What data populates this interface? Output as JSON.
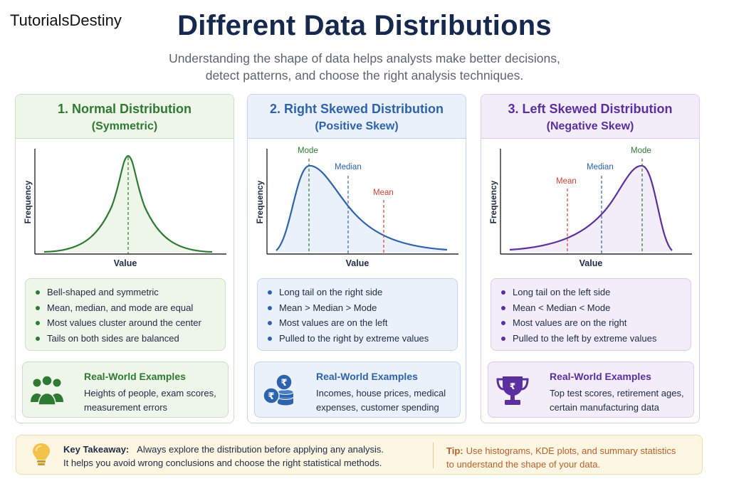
{
  "brand": "TutorialsDestiny",
  "title": "Different Data Distributions",
  "subtitle": [
    "Understanding the shape of data helps analysts make better decisions,",
    "detect patterns, and choose the right analysis techniques."
  ],
  "axis": {
    "x": "Value",
    "y": "Frequency"
  },
  "cards": [
    {
      "heading": "1. Normal Distribution",
      "subheading": "(Symmetric)",
      "color": "#2f7a33",
      "bg": "#eef6ea",
      "border": "#c9e1c3",
      "markers": [],
      "bullets": [
        "Bell-shaped and symmetric",
        "Mean, median, and mode are equal",
        "Most values cluster around the center",
        "Tails on both sides are balanced"
      ],
      "examples_title": "Real-World Examples",
      "examples_text": "Heights of people, exam scores, measurement errors",
      "icon": "people-group-icon"
    },
    {
      "heading": "2. Right Skewed Distribution",
      "subheading": "(Positive Skew)",
      "color": "#2d63ad",
      "bg": "#eaf1fa",
      "border": "#c3d5ee",
      "markers": [
        {
          "label": "Mode",
          "color": "#2f7a33"
        },
        {
          "label": "Median",
          "color": "#2d63ad"
        },
        {
          "label": "Mean",
          "color": "#d0413a"
        }
      ],
      "bullets": [
        "Long tail on the right side",
        "Mean > Median > Mode",
        "Most values are on the left",
        "Pulled to the right by extreme values"
      ],
      "examples_title": "Real-World Examples",
      "examples_text": "Incomes, house prices, medical expenses, customer spending",
      "icon": "rupee-coins-icon"
    },
    {
      "heading": "3. Left Skewed Distribution",
      "subheading": "(Negative Skew)",
      "color": "#5b2fa0",
      "bg": "#f2edf9",
      "border": "#d9ccec",
      "markers": [
        {
          "label": "Mean",
          "color": "#d0413a"
        },
        {
          "label": "Median",
          "color": "#2d63ad"
        },
        {
          "label": "Mode",
          "color": "#2f7a33"
        }
      ],
      "bullets": [
        "Long tail on the left side",
        "Mean < Median < Mode",
        "Most values are on the right",
        "Pulled to the left by extreme values"
      ],
      "examples_title": "Real-World Examples",
      "examples_text": "Top test scores, retirement ages, certain manufacturing data",
      "icon": "trophy-icon"
    }
  ],
  "takeaway": {
    "label": "Key Takeaway:",
    "line1": "Always explore the distribution before applying any analysis.",
    "line2": "It helps you avoid wrong conclusions and choose the right statistical methods.",
    "tip_label": "Tip:",
    "tip_line1": "Use histograms, KDE plots, and summary statistics",
    "tip_line2": "to understand the shape of your data.",
    "icon": "lightbulb-icon"
  }
}
